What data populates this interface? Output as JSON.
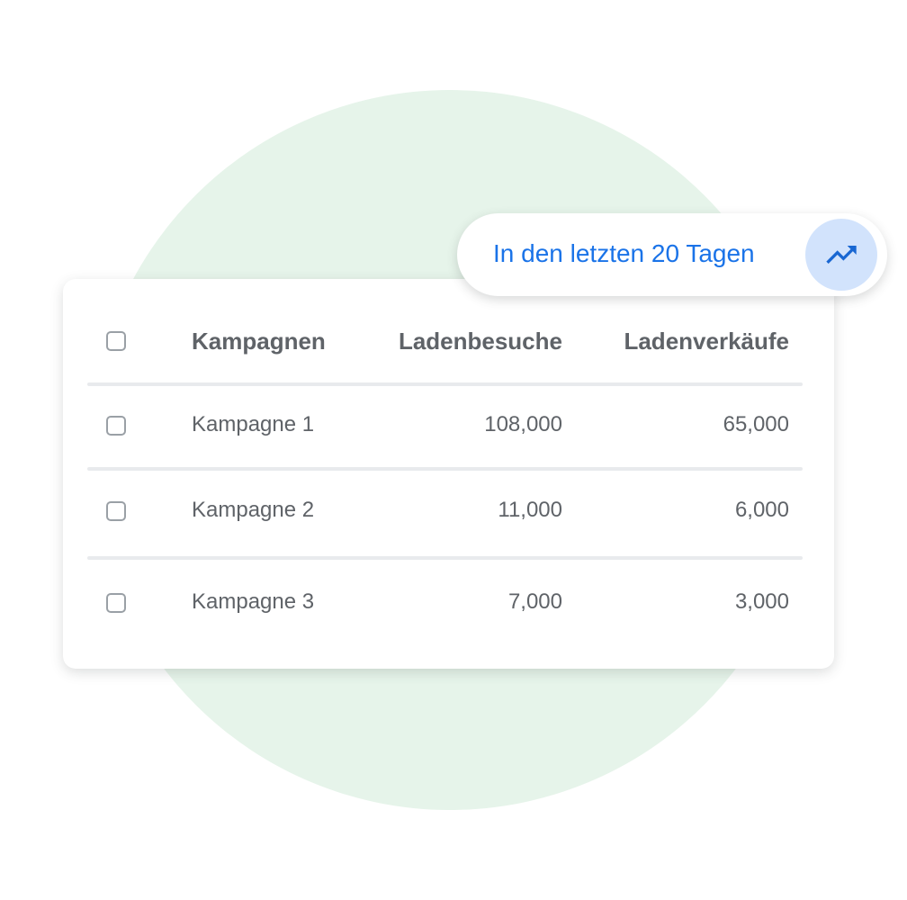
{
  "colors": {
    "accent": "#1a73e8",
    "icon_bg": "#d2e3fc",
    "circle": "#e6f4ea",
    "text": "#5f6368"
  },
  "badge": {
    "label": "In den letzten 20 Tagen",
    "icon": "trending-up-icon"
  },
  "table": {
    "headers": [
      "Kampagnen",
      "Ladenbesuche",
      "Ladenverkäufe"
    ],
    "rows": [
      {
        "name": "Kampagne 1",
        "visits": "108,000",
        "sales": "65,000"
      },
      {
        "name": "Kampagne 2",
        "visits": "11,000",
        "sales": "6,000"
      },
      {
        "name": "Kampagne 3",
        "visits": "7,000",
        "sales": "3,000"
      }
    ]
  }
}
